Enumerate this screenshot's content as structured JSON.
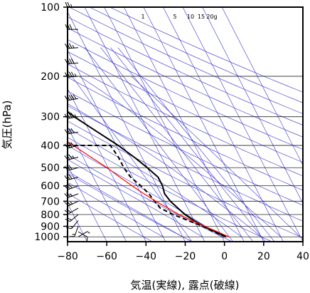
{
  "chart_data": {
    "type": "line",
    "title": "",
    "xlabel": "気温(実線), 露点(破線)",
    "ylabel": "気圧(hPa)",
    "x_axis": {
      "min": -80,
      "max": 40,
      "ticks": [
        -80,
        -60,
        -40,
        -20,
        0,
        20,
        40
      ]
    },
    "y_axis": {
      "scale": "log",
      "min": 1050,
      "max": 100,
      "ticks": [
        100,
        200,
        300,
        400,
        500,
        600,
        700,
        800,
        900,
        1000
      ]
    },
    "skew_per_decade": 60,
    "grid": true,
    "mixing_ratio_labels": [
      "1",
      "5",
      "10",
      "15",
      "20g"
    ],
    "mixing_ratio_values": [
      1,
      5,
      10,
      15,
      20
    ],
    "series": [
      {
        "role": "temperature",
        "style": "solid",
        "color": "#000000",
        "points": [
          [
            1000,
            2
          ],
          [
            975,
            0
          ],
          [
            950,
            -2
          ],
          [
            925,
            -4.5
          ],
          [
            900,
            -6.5
          ],
          [
            850,
            -10
          ],
          [
            800,
            -13
          ],
          [
            750,
            -15
          ],
          [
            700,
            -17
          ],
          [
            650,
            -18
          ],
          [
            600,
            -17
          ],
          [
            550,
            -17
          ],
          [
            500,
            -20
          ],
          [
            450,
            -24
          ],
          [
            400,
            -29
          ],
          [
            350,
            -36
          ],
          [
            300,
            -44
          ],
          [
            250,
            -51
          ],
          [
            200,
            -51
          ],
          [
            175,
            -51
          ],
          [
            150,
            -57
          ],
          [
            120,
            -63
          ],
          [
            100,
            -67
          ]
        ]
      },
      {
        "role": "dewpoint",
        "style": "dashed",
        "color": "#000000",
        "points": [
          [
            1000,
            2
          ],
          [
            950,
            -3
          ],
          [
            900,
            -7
          ],
          [
            850,
            -13
          ],
          [
            800,
            -19
          ],
          [
            750,
            -24
          ],
          [
            700,
            -25
          ],
          [
            650,
            -26
          ],
          [
            600,
            -28
          ],
          [
            550,
            -31
          ],
          [
            500,
            -32
          ],
          [
            450,
            -32
          ],
          [
            400,
            -33
          ],
          [
            400,
            -67
          ]
        ]
      },
      {
        "role": "parcel",
        "style": "solid",
        "color": "#ff0000",
        "points": [
          [
            1000,
            3.5
          ],
          [
            950,
            -1
          ],
          [
            900,
            -6
          ],
          [
            850,
            -11
          ],
          [
            800,
            -16
          ],
          [
            750,
            -20
          ],
          [
            700,
            -24.5
          ],
          [
            650,
            -28.5
          ],
          [
            600,
            -32.5
          ],
          [
            550,
            -36.5
          ],
          [
            500,
            -40.5
          ],
          [
            450,
            -46
          ],
          [
            400,
            -52
          ],
          [
            350,
            -59
          ],
          [
            300,
            -69
          ],
          [
            260,
            -80
          ]
        ]
      }
    ],
    "wind_barbs": [
      {
        "p": 1000,
        "speed": 5,
        "dir": 60
      },
      {
        "p": 950,
        "speed": 10,
        "dir": 120
      },
      {
        "p": 900,
        "speed": 15,
        "dir": 200
      },
      {
        "p": 850,
        "speed": 15,
        "dir": 220
      },
      {
        "p": 800,
        "speed": 20,
        "dir": 230
      },
      {
        "p": 750,
        "speed": 20,
        "dir": 240
      },
      {
        "p": 700,
        "speed": 25,
        "dir": 245
      },
      {
        "p": 650,
        "speed": 25,
        "dir": 250
      },
      {
        "p": 600,
        "speed": 30,
        "dir": 250
      },
      {
        "p": 550,
        "speed": 30,
        "dir": 255
      },
      {
        "p": 500,
        "speed": 30,
        "dir": 255
      },
      {
        "p": 450,
        "speed": 35,
        "dir": 255
      },
      {
        "p": 400,
        "speed": 40,
        "dir": 255
      },
      {
        "p": 350,
        "speed": 40,
        "dir": 260
      },
      {
        "p": 300,
        "speed": 45,
        "dir": 260
      },
      {
        "p": 250,
        "speed": 50,
        "dir": 260
      },
      {
        "p": 200,
        "speed": 45,
        "dir": 265
      },
      {
        "p": 175,
        "speed": 40,
        "dir": 265
      },
      {
        "p": 150,
        "speed": 35,
        "dir": 265
      },
      {
        "p": 125,
        "speed": 30,
        "dir": 270
      },
      {
        "p": 100,
        "speed": 25,
        "dir": 270
      }
    ],
    "colors": {
      "grid": "#3333cc",
      "isobar": "#000000",
      "frame": "#000000"
    }
  }
}
